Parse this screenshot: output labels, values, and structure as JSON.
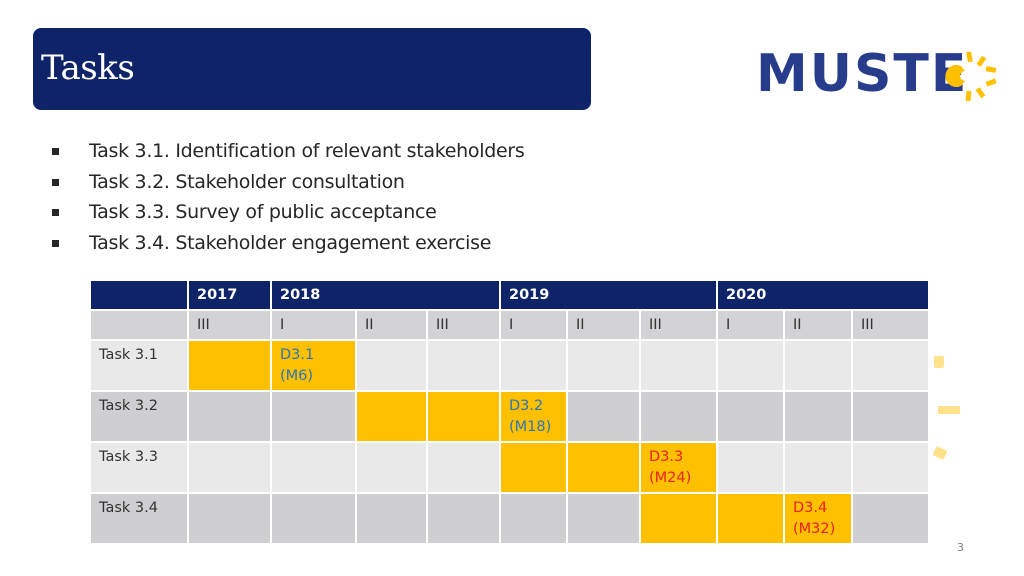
{
  "header": {
    "title": "Tasks"
  },
  "logo": {
    "text": "MUSTEC",
    "text_visible": "MUSTE",
    "brand_color": "#273d8b",
    "sun_color": "#ffc000"
  },
  "bullets": [
    "Task 3.1. Identification of relevant stakeholders",
    "Task 3.2. Stakeholder consultation",
    "Task 3.3. Survey of public acceptance",
    "Task 3.4. Stakeholder engagement exercise"
  ],
  "gantt": {
    "years": [
      "2017",
      "2018",
      "2019",
      "2020"
    ],
    "quarters": [
      "III",
      "I",
      "II",
      "III",
      "I",
      "II",
      "III",
      "I",
      "II",
      "III"
    ],
    "tasks": [
      {
        "label": "Task 3.1",
        "deliverable": "D3.1",
        "month": "(M6)"
      },
      {
        "label": "Task 3.2",
        "deliverable": "D3.2",
        "month": "(M18)"
      },
      {
        "label": "Task 3.3",
        "deliverable": "D3.3",
        "month": "(M24)"
      },
      {
        "label": "Task 3.4",
        "deliverable": "D3.4",
        "month": "(M32)"
      }
    ],
    "colors": {
      "header": "#0f2468",
      "active": "#ffc000",
      "blue_text": "#2e74b5",
      "red_text": "#e8231e"
    }
  },
  "footer": {
    "page_number": "3"
  }
}
